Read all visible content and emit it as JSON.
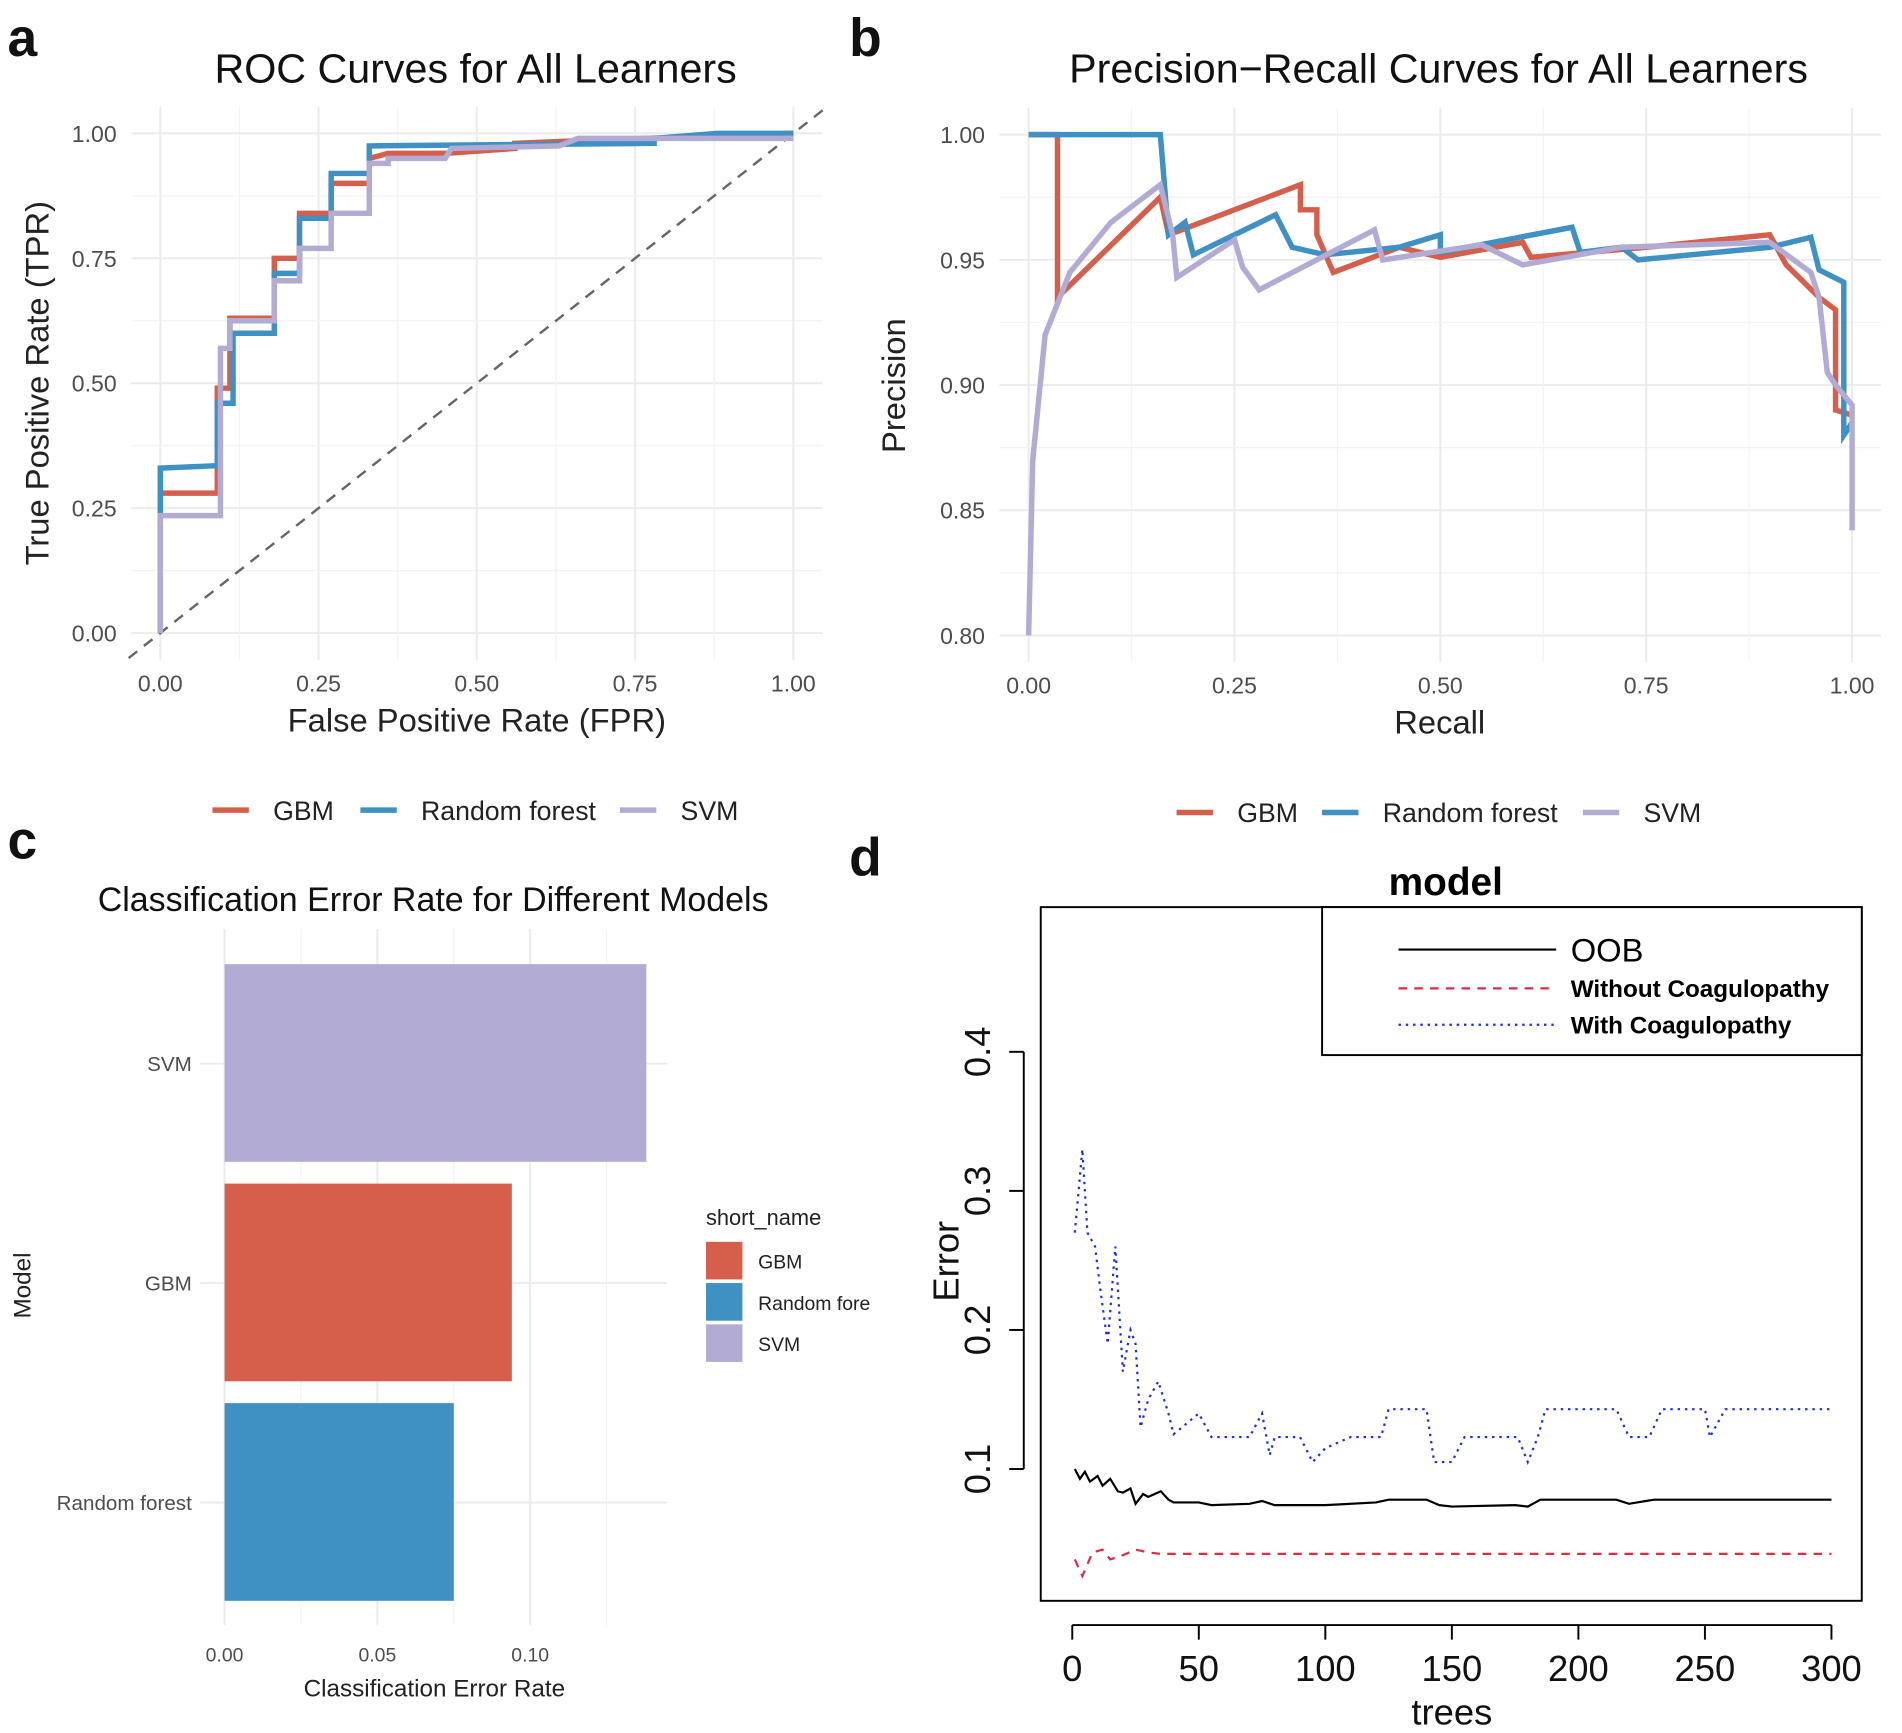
{
  "panels": {
    "a": "a",
    "b": "b",
    "c": "c",
    "d": "d"
  },
  "colors": {
    "GBM": "#d55f4b",
    "Random forest": "#3f90c3",
    "SVM": "#b2abd3",
    "OOB": "#000000",
    "Without Coagulopathy": "#df2a4a",
    "With Coagulopathy": "#1f2ae8",
    "diagonal": "#666666"
  },
  "chart_data": [
    {
      "type": "line",
      "title": "ROC Curves for All Learners",
      "xlabel": "False Positive Rate (FPR)",
      "ylabel": "True Positive Rate (TPR)",
      "xlim": [
        0,
        1
      ],
      "ylim": [
        0,
        1
      ],
      "xticks": [
        "0.00",
        "0.25",
        "0.50",
        "0.75",
        "1.00"
      ],
      "yticks": [
        "0.00",
        "0.25",
        "0.50",
        "0.75",
        "1.00"
      ],
      "grid": true,
      "legend": {
        "placement": "bottom",
        "entries": [
          "GBM",
          "Random forest",
          "SVM"
        ]
      },
      "diagonal_reference": true,
      "series": [
        {
          "name": "GBM",
          "points": [
            [
              0,
              0
            ],
            [
              0,
              0.28
            ],
            [
              0.09,
              0.28
            ],
            [
              0.09,
              0.49
            ],
            [
              0.11,
              0.49
            ],
            [
              0.11,
              0.63
            ],
            [
              0.18,
              0.63
            ],
            [
              0.18,
              0.75
            ],
            [
              0.22,
              0.75
            ],
            [
              0.22,
              0.84
            ],
            [
              0.27,
              0.84
            ],
            [
              0.27,
              0.9
            ],
            [
              0.33,
              0.9
            ],
            [
              0.33,
              0.95
            ],
            [
              0.36,
              0.96
            ],
            [
              0.45,
              0.96
            ],
            [
              0.56,
              0.97
            ],
            [
              0.56,
              0.98
            ],
            [
              0.65,
              0.985
            ],
            [
              1,
              1
            ]
          ]
        },
        {
          "name": "Random forest",
          "points": [
            [
              0,
              0
            ],
            [
              0,
              0.33
            ],
            [
              0.09,
              0.335
            ],
            [
              0.09,
              0.46
            ],
            [
              0.115,
              0.46
            ],
            [
              0.115,
              0.6
            ],
            [
              0.18,
              0.6
            ],
            [
              0.18,
              0.72
            ],
            [
              0.22,
              0.72
            ],
            [
              0.22,
              0.83
            ],
            [
              0.27,
              0.83
            ],
            [
              0.27,
              0.92
            ],
            [
              0.33,
              0.92
            ],
            [
              0.33,
              0.975
            ],
            [
              0.78,
              0.98
            ],
            [
              0.78,
              0.99
            ],
            [
              0.88,
              1
            ],
            [
              1,
              1
            ]
          ]
        },
        {
          "name": "SVM",
          "points": [
            [
              0,
              0
            ],
            [
              0,
              0.235
            ],
            [
              0.095,
              0.235
            ],
            [
              0.095,
              0.57
            ],
            [
              0.11,
              0.57
            ],
            [
              0.11,
              0.625
            ],
            [
              0.18,
              0.625
            ],
            [
              0.18,
              0.705
            ],
            [
              0.22,
              0.705
            ],
            [
              0.22,
              0.77
            ],
            [
              0.27,
              0.77
            ],
            [
              0.27,
              0.84
            ],
            [
              0.33,
              0.84
            ],
            [
              0.33,
              0.94
            ],
            [
              0.36,
              0.94
            ],
            [
              0.36,
              0.95
            ],
            [
              0.45,
              0.95
            ],
            [
              0.46,
              0.97
            ],
            [
              0.63,
              0.975
            ],
            [
              0.66,
              0.99
            ],
            [
              1,
              0.99
            ]
          ]
        }
      ]
    },
    {
      "type": "line",
      "title": "Precision−Recall Curves for All Learners",
      "xlabel": "Recall",
      "ylabel": "Precision",
      "xlim": [
        0,
        1
      ],
      "ylim": [
        0.8,
        1
      ],
      "xticks": [
        "0.00",
        "0.25",
        "0.50",
        "0.75",
        "1.00"
      ],
      "yticks": [
        "0.80",
        "0.85",
        "0.90",
        "0.95",
        "1.00"
      ],
      "grid": true,
      "legend": {
        "placement": "bottom",
        "entries": [
          "GBM",
          "Random forest",
          "SVM"
        ]
      },
      "series": [
        {
          "name": "GBM",
          "points": [
            [
              0,
              1
            ],
            [
              0.035,
              1
            ],
            [
              0.035,
              0.935
            ],
            [
              0.16,
              0.975
            ],
            [
              0.17,
              0.96
            ],
            [
              0.33,
              0.98
            ],
            [
              0.33,
              0.97
            ],
            [
              0.35,
              0.97
            ],
            [
              0.35,
              0.96
            ],
            [
              0.37,
              0.945
            ],
            [
              0.45,
              0.955
            ],
            [
              0.5,
              0.951
            ],
            [
              0.6,
              0.957
            ],
            [
              0.61,
              0.951
            ],
            [
              0.75,
              0.955
            ],
            [
              0.9,
              0.96
            ],
            [
              0.92,
              0.948
            ],
            [
              0.96,
              0.935
            ],
            [
              0.98,
              0.93
            ],
            [
              0.98,
              0.89
            ],
            [
              1,
              0.888
            ]
          ]
        },
        {
          "name": "Random forest",
          "points": [
            [
              0,
              1
            ],
            [
              0.16,
              1
            ],
            [
              0.17,
              0.96
            ],
            [
              0.19,
              0.965
            ],
            [
              0.2,
              0.952
            ],
            [
              0.3,
              0.968
            ],
            [
              0.32,
              0.955
            ],
            [
              0.36,
              0.952
            ],
            [
              0.45,
              0.955
            ],
            [
              0.5,
              0.96
            ],
            [
              0.5,
              0.953
            ],
            [
              0.66,
              0.963
            ],
            [
              0.67,
              0.953
            ],
            [
              0.72,
              0.955
            ],
            [
              0.74,
              0.95
            ],
            [
              0.9,
              0.955
            ],
            [
              0.95,
              0.959
            ],
            [
              0.96,
              0.946
            ],
            [
              0.99,
              0.941
            ],
            [
              0.99,
              0.88
            ],
            [
              1,
              0.885
            ]
          ]
        },
        {
          "name": "SVM",
          "points": [
            [
              0,
              0.8
            ],
            [
              0.005,
              0.87
            ],
            [
              0.02,
              0.92
            ],
            [
              0.05,
              0.945
            ],
            [
              0.1,
              0.965
            ],
            [
              0.16,
              0.98
            ],
            [
              0.175,
              0.96
            ],
            [
              0.18,
              0.943
            ],
            [
              0.25,
              0.958
            ],
            [
              0.26,
              0.947
            ],
            [
              0.28,
              0.938
            ],
            [
              0.42,
              0.962
            ],
            [
              0.43,
              0.95
            ],
            [
              0.55,
              0.956
            ],
            [
              0.6,
              0.948
            ],
            [
              0.72,
              0.955
            ],
            [
              0.9,
              0.957
            ],
            [
              0.95,
              0.945
            ],
            [
              0.96,
              0.935
            ],
            [
              0.97,
              0.905
            ],
            [
              0.98,
              0.9
            ],
            [
              1,
              0.892
            ],
            [
              1,
              0.842
            ]
          ]
        }
      ]
    },
    {
      "type": "bar",
      "orientation": "horizontal",
      "title": "Classification Error Rate for Different Models",
      "xlabel": "Classification Error Rate",
      "ylabel": "Model",
      "categories": [
        "SVM",
        "GBM",
        "Random forest"
      ],
      "values": [
        0.138,
        0.094,
        0.075
      ],
      "xlim": [
        0,
        0.14
      ],
      "xticks": [
        "0.00",
        "0.05",
        "0.10"
      ],
      "grid": true,
      "legend": {
        "placement": "right",
        "title": "short_name",
        "entries": [
          "GBM",
          "Random forest",
          "SVM"
        ]
      }
    },
    {
      "type": "line",
      "title": "model",
      "xlabel": "trees",
      "ylabel": "Error",
      "xlim": [
        0,
        300
      ],
      "ylim": [
        0,
        0.5
      ],
      "xticks": [
        "0",
        "50",
        "100",
        "150",
        "200",
        "250",
        "300"
      ],
      "yticks": [
        "0.1",
        "0.2",
        "0.3",
        "0.4"
      ],
      "grid": false,
      "legend": {
        "placement": "top-right",
        "entries": [
          "OOB",
          "Without Coagulopathy",
          "With Coagulopathy"
        ]
      },
      "series": [
        {
          "name": "OOB",
          "style": "solid",
          "points": [
            [
              1,
              0.1
            ],
            [
              3,
              0.093
            ],
            [
              5,
              0.098
            ],
            [
              7,
              0.091
            ],
            [
              10,
              0.095
            ],
            [
              12,
              0.088
            ],
            [
              15,
              0.093
            ],
            [
              18,
              0.084
            ],
            [
              20,
              0.083
            ],
            [
              23,
              0.086
            ],
            [
              25,
              0.075
            ],
            [
              28,
              0.082
            ],
            [
              30,
              0.08
            ],
            [
              35,
              0.084
            ],
            [
              38,
              0.078
            ],
            [
              40,
              0.076
            ],
            [
              50,
              0.076
            ],
            [
              55,
              0.074
            ],
            [
              70,
              0.075
            ],
            [
              75,
              0.077
            ],
            [
              80,
              0.074
            ],
            [
              100,
              0.074
            ],
            [
              120,
              0.076
            ],
            [
              125,
              0.078
            ],
            [
              140,
              0.078
            ],
            [
              145,
              0.074
            ],
            [
              150,
              0.073
            ],
            [
              175,
              0.074
            ],
            [
              180,
              0.073
            ],
            [
              185,
              0.078
            ],
            [
              215,
              0.078
            ],
            [
              220,
              0.075
            ],
            [
              230,
              0.078
            ],
            [
              300,
              0.078
            ]
          ]
        },
        {
          "name": "Without Coagulopathy",
          "style": "dashed",
          "points": [
            [
              1,
              0.035
            ],
            [
              4,
              0.023
            ],
            [
              8,
              0.04
            ],
            [
              12,
              0.042
            ],
            [
              15,
              0.035
            ],
            [
              20,
              0.038
            ],
            [
              25,
              0.042
            ],
            [
              30,
              0.04
            ],
            [
              35,
              0.039
            ],
            [
              300,
              0.039
            ]
          ]
        },
        {
          "name": "With Coagulopathy",
          "style": "dotted",
          "points": [
            [
              1,
              0.27
            ],
            [
              4,
              0.33
            ],
            [
              6,
              0.27
            ],
            [
              9,
              0.26
            ],
            [
              11,
              0.23
            ],
            [
              14,
              0.19
            ],
            [
              17,
              0.26
            ],
            [
              20,
              0.17
            ],
            [
              23,
              0.2
            ],
            [
              25,
              0.19
            ],
            [
              27,
              0.13
            ],
            [
              30,
              0.15
            ],
            [
              34,
              0.163
            ],
            [
              38,
              0.14
            ],
            [
              40,
              0.125
            ],
            [
              50,
              0.14
            ],
            [
              55,
              0.123
            ],
            [
              60,
              0.123
            ],
            [
              70,
              0.123
            ],
            [
              75,
              0.14
            ],
            [
              78,
              0.11
            ],
            [
              80,
              0.123
            ],
            [
              90,
              0.123
            ],
            [
              95,
              0.105
            ],
            [
              100,
              0.115
            ],
            [
              110,
              0.123
            ],
            [
              122,
              0.123
            ],
            [
              125,
              0.143
            ],
            [
              140,
              0.143
            ],
            [
              143,
              0.105
            ],
            [
              150,
              0.105
            ],
            [
              155,
              0.123
            ],
            [
              176,
              0.123
            ],
            [
              180,
              0.105
            ],
            [
              184,
              0.123
            ],
            [
              187,
              0.143
            ],
            [
              215,
              0.143
            ],
            [
              220,
              0.123
            ],
            [
              228,
              0.123
            ],
            [
              233,
              0.143
            ],
            [
              250,
              0.143
            ],
            [
              252,
              0.123
            ],
            [
              258,
              0.143
            ],
            [
              300,
              0.143
            ]
          ]
        }
      ]
    }
  ]
}
